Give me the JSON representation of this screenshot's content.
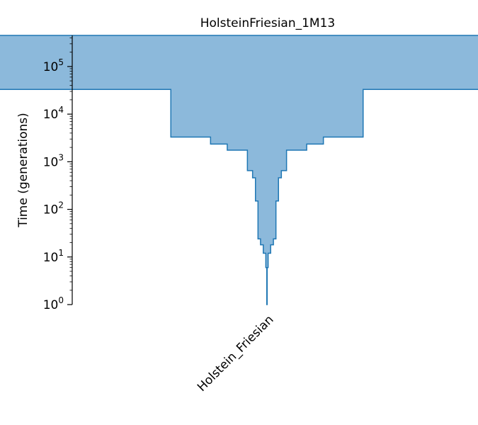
{
  "chart_data": {
    "type": "area",
    "title": "HolsteinFriesian_1M13",
    "ylabel": "Time (generations)",
    "yscale": "log",
    "ylim": [
      1,
      450000
    ],
    "yticks": [
      {
        "value": 1,
        "base": "10",
        "exp": "0"
      },
      {
        "value": 10,
        "base": "10",
        "exp": "1"
      },
      {
        "value": 100,
        "base": "10",
        "exp": "2"
      },
      {
        "value": 1000,
        "base": "10",
        "exp": "3"
      },
      {
        "value": 10000,
        "base": "10",
        "exp": "4"
      },
      {
        "value": 100000,
        "base": "10",
        "exp": "5"
      }
    ],
    "categories": [
      "Holstein_Friesian"
    ],
    "series": [
      {
        "population": "Holstein_Friesian",
        "epochs": [
          {
            "start_time": 1,
            "end_time": 6,
            "size": 1500
          },
          {
            "start_time": 6,
            "end_time": 12,
            "size": 10000
          },
          {
            "start_time": 12,
            "end_time": 18,
            "size": 32000
          },
          {
            "start_time": 18,
            "end_time": 24,
            "size": 56000
          },
          {
            "start_time": 24,
            "end_time": 150,
            "size": 78000
          },
          {
            "start_time": 150,
            "end_time": 460,
            "size": 100000
          },
          {
            "start_time": 460,
            "end_time": 650,
            "size": 125000
          },
          {
            "start_time": 650,
            "end_time": 1750,
            "size": 170000
          },
          {
            "start_time": 1750,
            "end_time": 2350,
            "size": 345000
          },
          {
            "start_time": 2350,
            "end_time": 3300,
            "size": 490000
          },
          {
            "start_time": 3300,
            "end_time": 33000,
            "size": 835000
          },
          {
            "start_time": 33000,
            "end_time": 450000,
            "size": 3075000
          }
        ]
      }
    ],
    "fill_color": "#8cb9db",
    "line_color": "#1f77b4",
    "grid": false
  }
}
